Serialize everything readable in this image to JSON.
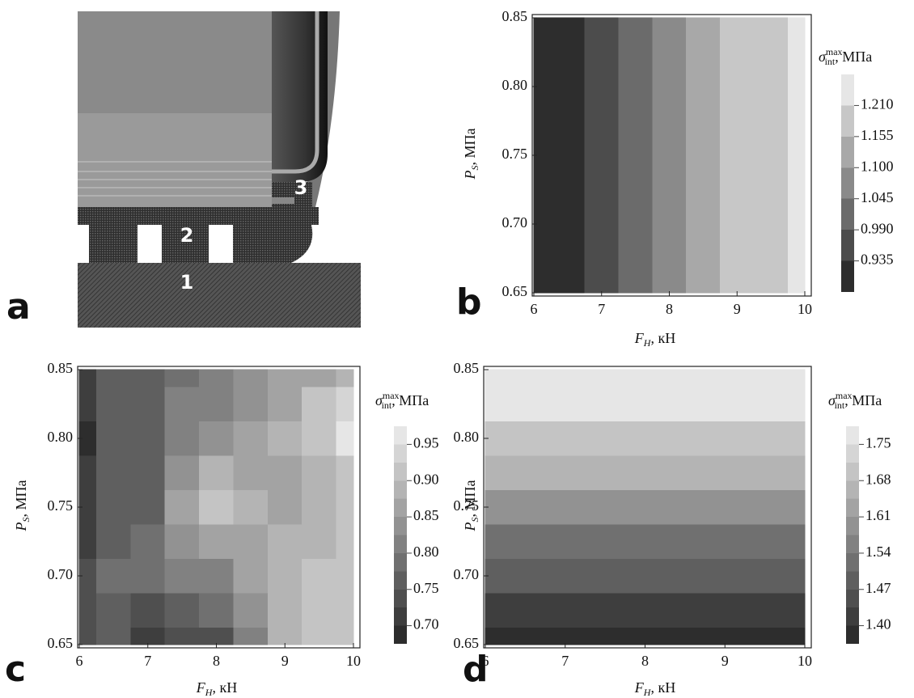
{
  "diagram": {
    "panel": "a",
    "labels": [
      "1",
      "2",
      "3"
    ]
  },
  "chart_data": [
    {
      "type": "contour",
      "panel": "b",
      "x_label": {
        "symbol": "F",
        "subscript": "H",
        "rest": ", кН"
      },
      "y_label": {
        "symbol": "P",
        "subscript": "S",
        "rest": ", МПа"
      },
      "colorbar_title": {
        "symbol": "σ",
        "subscript": "int",
        "superscript": "max",
        "rest": ", МПа"
      },
      "x": [
        6,
        6.5,
        7,
        7.5,
        8,
        8.5,
        9,
        9.5,
        10
      ],
      "y": [
        0.65,
        0.675,
        0.7,
        0.725,
        0.75,
        0.775,
        0.8,
        0.825,
        0.85
      ],
      "z": [
        [
          0.89,
          0.93,
          0.97,
          1.02,
          1.07,
          1.11,
          1.16,
          1.2,
          1.25
        ],
        [
          0.89,
          0.93,
          0.97,
          1.02,
          1.07,
          1.11,
          1.16,
          1.2,
          1.25
        ],
        [
          0.89,
          0.93,
          0.97,
          1.02,
          1.07,
          1.11,
          1.16,
          1.2,
          1.25
        ],
        [
          0.89,
          0.93,
          0.97,
          1.02,
          1.07,
          1.11,
          1.16,
          1.2,
          1.25
        ],
        [
          0.89,
          0.93,
          0.97,
          1.02,
          1.07,
          1.11,
          1.16,
          1.2,
          1.25
        ],
        [
          0.89,
          0.93,
          0.97,
          1.02,
          1.07,
          1.11,
          1.16,
          1.2,
          1.25
        ],
        [
          0.89,
          0.93,
          0.97,
          1.02,
          1.07,
          1.11,
          1.16,
          1.2,
          1.25
        ],
        [
          0.89,
          0.93,
          0.97,
          1.02,
          1.07,
          1.11,
          1.16,
          1.2,
          1.25
        ],
        [
          0.89,
          0.93,
          0.97,
          1.02,
          1.07,
          1.11,
          1.16,
          1.2,
          1.25
        ]
      ],
      "levels": [
        0.935,
        0.99,
        1.045,
        1.1,
        1.155,
        1.21
      ],
      "xlim": [
        6,
        10
      ],
      "ylim": [
        0.65,
        0.85
      ],
      "zlim": [
        0.88,
        1.265
      ],
      "xticks": [
        6,
        7,
        8,
        9,
        10
      ],
      "yticks": [
        0.65,
        {
          "value": 0.7,
          "label": "0.70"
        },
        0.75,
        {
          "value": 0.8,
          "label": "0.80"
        },
        0.85
      ],
      "zticks": [
        0.935,
        {
          "value": 0.99,
          "label": "0.990"
        },
        1.045,
        {
          "value": 1.1,
          "label": "1.100"
        },
        1.155,
        {
          "value": 1.21,
          "label": "1.210"
        }
      ]
    },
    {
      "type": "contour",
      "panel": "c",
      "x_label": {
        "symbol": "F",
        "subscript": "H",
        "rest": ", кН"
      },
      "y_label": {
        "symbol": "P",
        "subscript": "S",
        "rest": ", МПа"
      },
      "colorbar_title": {
        "symbol": "σ",
        "subscript": "int",
        "superscript": "max",
        "rest": ", МПа"
      },
      "x": [
        6,
        6.5,
        7,
        7.5,
        8,
        8.5,
        9,
        9.5,
        10
      ],
      "y": [
        0.65,
        0.675,
        0.7,
        0.725,
        0.75,
        0.775,
        0.8,
        0.825,
        0.85
      ],
      "z": [
        [
          0.74,
          0.76,
          0.7,
          0.74,
          0.74,
          0.82,
          0.88,
          0.9,
          0.92
        ],
        [
          0.74,
          0.77,
          0.73,
          0.77,
          0.78,
          0.84,
          0.88,
          0.9,
          0.92
        ],
        [
          0.73,
          0.78,
          0.78,
          0.8,
          0.82,
          0.86,
          0.89,
          0.9,
          0.92
        ],
        [
          0.72,
          0.77,
          0.79,
          0.84,
          0.87,
          0.87,
          0.88,
          0.89,
          0.9
        ],
        [
          0.71,
          0.76,
          0.77,
          0.85,
          0.92,
          0.88,
          0.87,
          0.88,
          0.9
        ],
        [
          0.7,
          0.76,
          0.77,
          0.83,
          0.88,
          0.86,
          0.87,
          0.89,
          0.92
        ],
        [
          0.69,
          0.75,
          0.77,
          0.81,
          0.84,
          0.85,
          0.88,
          0.92,
          0.97
        ],
        [
          0.7,
          0.75,
          0.77,
          0.8,
          0.82,
          0.84,
          0.87,
          0.9,
          0.93
        ],
        [
          0.72,
          0.75,
          0.77,
          0.79,
          0.81,
          0.83,
          0.85,
          0.87,
          0.89
        ]
      ],
      "levels": [
        0.7,
        0.725,
        0.75,
        0.775,
        0.8,
        0.825,
        0.85,
        0.875,
        0.9,
        0.925,
        0.95
      ],
      "xlim": [
        6,
        10
      ],
      "ylim": [
        0.65,
        0.85
      ],
      "zlim": [
        0.675,
        0.975
      ],
      "xticks": [
        6,
        7,
        8,
        9,
        10
      ],
      "yticks": [
        0.65,
        {
          "value": 0.7,
          "label": "0.70"
        },
        0.75,
        {
          "value": 0.8,
          "label": "0.80"
        },
        0.85
      ],
      "zticks": [
        {
          "value": 0.7,
          "label": "0.70"
        },
        0.75,
        {
          "value": 0.8,
          "label": "0.80"
        },
        0.85,
        {
          "value": 0.9,
          "label": "0.90"
        },
        0.95
      ]
    },
    {
      "type": "contour",
      "panel": "d",
      "x_label": {
        "symbol": "F",
        "subscript": "H",
        "rest": ", кН"
      },
      "y_label": {
        "symbol": "P",
        "subscript": "S",
        "rest": ", МПа"
      },
      "colorbar_title": {
        "symbol": "σ",
        "subscript": "int",
        "superscript": "max",
        "rest": ", МПа"
      },
      "x": [
        6,
        6.5,
        7,
        7.5,
        8,
        8.5,
        9,
        9.5,
        10
      ],
      "y": [
        0.65,
        0.675,
        0.7,
        0.725,
        0.75,
        0.775,
        0.8,
        0.825,
        0.85
      ],
      "z": [
        [
          1.374,
          1.374,
          1.374,
          1.374,
          1.374,
          1.374,
          1.374,
          1.374,
          1.374
        ],
        [
          1.429,
          1.429,
          1.429,
          1.429,
          1.429,
          1.429,
          1.429,
          1.429,
          1.429
        ],
        [
          1.484,
          1.484,
          1.484,
          1.484,
          1.484,
          1.484,
          1.484,
          1.484,
          1.484
        ],
        [
          1.539,
          1.539,
          1.539,
          1.539,
          1.539,
          1.539,
          1.539,
          1.539,
          1.539
        ],
        [
          1.594,
          1.594,
          1.594,
          1.594,
          1.594,
          1.594,
          1.594,
          1.594,
          1.594
        ],
        [
          1.649,
          1.649,
          1.649,
          1.649,
          1.649,
          1.649,
          1.649,
          1.649,
          1.649
        ],
        [
          1.704,
          1.704,
          1.704,
          1.704,
          1.704,
          1.704,
          1.704,
          1.704,
          1.704
        ],
        [
          1.759,
          1.759,
          1.759,
          1.759,
          1.759,
          1.759,
          1.759,
          1.759,
          1.759
        ],
        [
          1.814,
          1.814,
          1.814,
          1.814,
          1.814,
          1.814,
          1.814,
          1.814,
          1.814
        ]
      ],
      "levels": [
        1.4,
        1.435,
        1.47,
        1.505,
        1.54,
        1.575,
        1.61,
        1.645,
        1.68,
        1.715,
        1.75
      ],
      "xlim": [
        6,
        10
      ],
      "ylim": [
        0.65,
        0.85
      ],
      "zlim": [
        1.365,
        1.785
      ],
      "xticks": [
        6,
        7,
        8,
        9,
        10
      ],
      "yticks": [
        0.65,
        {
          "value": 0.7,
          "label": "0.70"
        },
        0.75,
        {
          "value": 0.8,
          "label": "0.80"
        },
        0.85
      ],
      "zticks": [
        {
          "value": 1.4,
          "label": "1.40"
        },
        1.47,
        1.54,
        1.61,
        1.68,
        1.75
      ]
    }
  ]
}
